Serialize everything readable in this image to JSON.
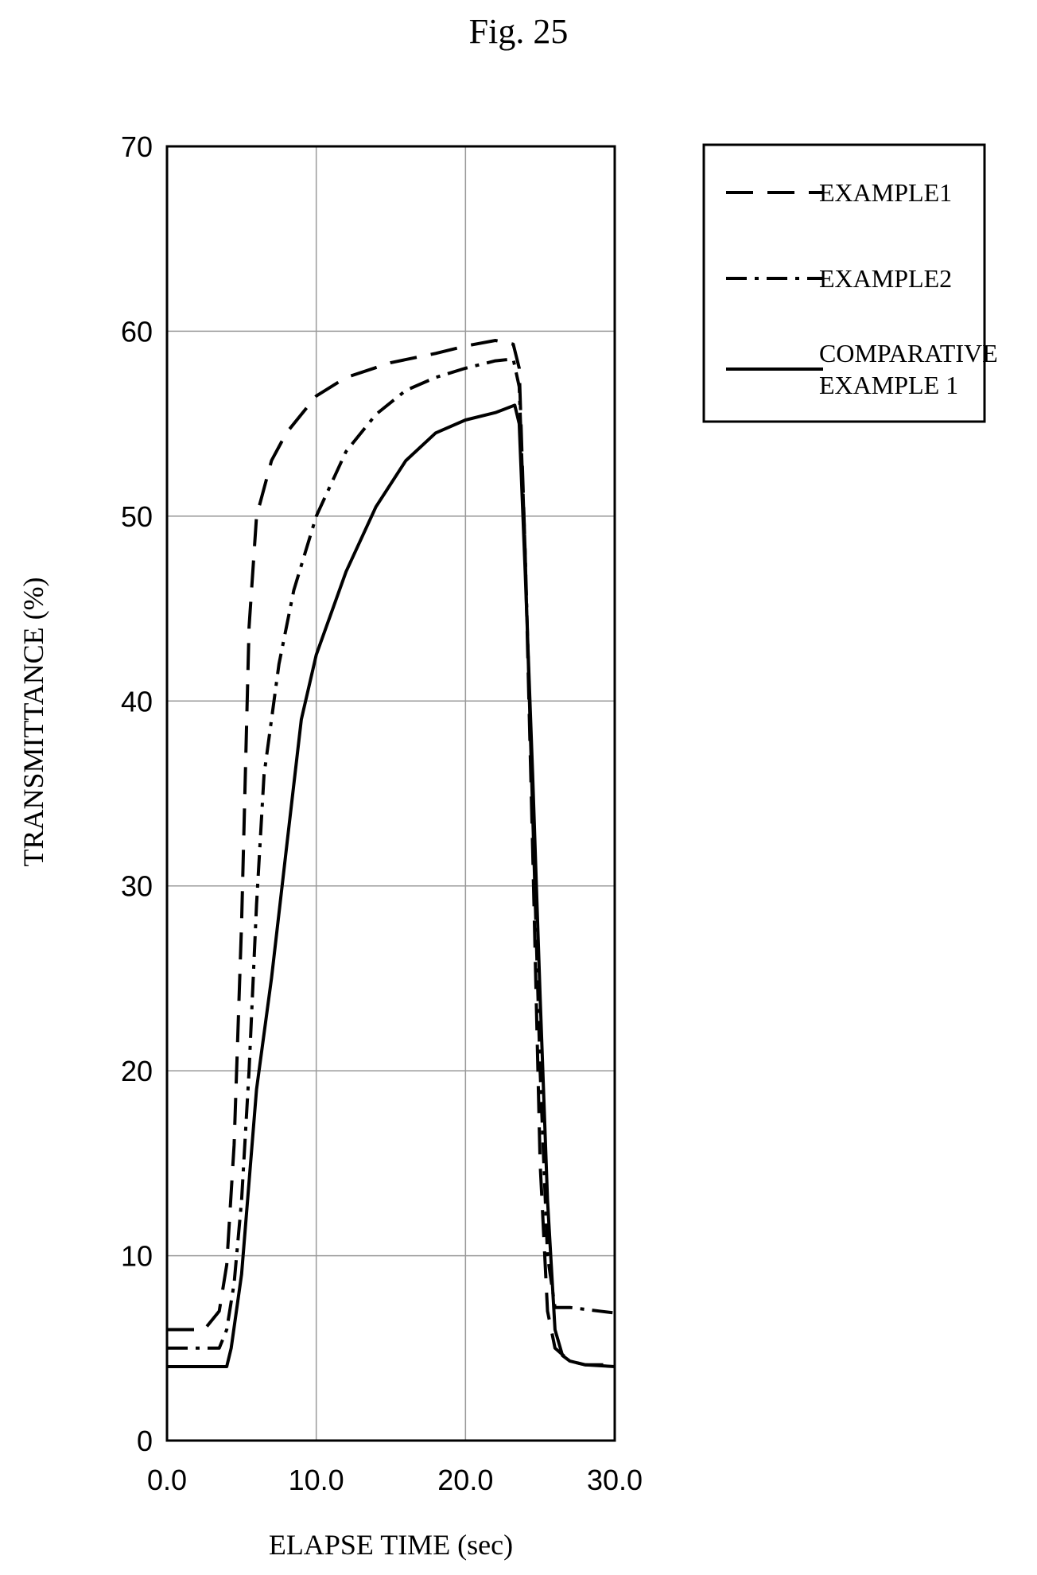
{
  "figure_label": "Fig. 25",
  "chart_data": {
    "type": "line",
    "title": "",
    "xlabel": "ELAPSE TIME (sec)",
    "ylabel": "TRANSMITTANCE (%)",
    "xlim": [
      0,
      30
    ],
    "ylim": [
      0,
      70
    ],
    "x_ticks": [
      "0.0",
      "10.0",
      "20.0",
      "30.0"
    ],
    "y_ticks": [
      "0",
      "10",
      "20",
      "30",
      "40",
      "50",
      "60",
      "70"
    ],
    "grid": true,
    "legend_position": "outside-right-top",
    "series": [
      {
        "name": "EXAMPLE1",
        "style": "dashed",
        "color": "#000000",
        "points": [
          [
            0,
            6
          ],
          [
            2.5,
            6
          ],
          [
            3.5,
            7
          ],
          [
            4,
            9.5
          ],
          [
            4.5,
            16
          ],
          [
            5,
            28
          ],
          [
            5.5,
            44
          ],
          [
            6,
            50
          ],
          [
            7,
            53
          ],
          [
            8,
            54.5
          ],
          [
            10,
            56.5
          ],
          [
            12,
            57.5
          ],
          [
            15,
            58.3
          ],
          [
            18,
            58.8
          ],
          [
            20,
            59.2
          ],
          [
            22,
            59.5
          ],
          [
            23.2,
            59.3
          ],
          [
            23.6,
            58
          ],
          [
            24,
            48
          ],
          [
            24.5,
            32
          ],
          [
            25,
            15
          ],
          [
            25.5,
            7
          ],
          [
            26,
            5
          ],
          [
            27,
            4.3
          ],
          [
            28,
            4.1
          ],
          [
            30,
            4.1
          ]
        ]
      },
      {
        "name": "EXAMPLE2",
        "style": "dashdot",
        "color": "#000000",
        "points": [
          [
            0,
            5
          ],
          [
            3.5,
            5
          ],
          [
            4,
            6
          ],
          [
            4.5,
            8.5
          ],
          [
            5,
            13
          ],
          [
            5.5,
            20
          ],
          [
            6,
            29
          ],
          [
            6.5,
            36
          ],
          [
            7.5,
            42
          ],
          [
            8.5,
            46
          ],
          [
            10,
            50
          ],
          [
            12,
            53.5
          ],
          [
            14,
            55.5
          ],
          [
            16,
            56.8
          ],
          [
            18,
            57.5
          ],
          [
            20,
            58
          ],
          [
            22,
            58.4
          ],
          [
            23.2,
            58.5
          ],
          [
            23.6,
            57
          ],
          [
            24,
            48
          ],
          [
            24.5,
            34
          ],
          [
            25,
            20
          ],
          [
            25.5,
            10
          ],
          [
            26,
            7.2
          ],
          [
            27,
            7.2
          ],
          [
            28,
            7.1
          ],
          [
            29,
            7
          ],
          [
            30,
            6.9
          ]
        ]
      },
      {
        "name": "COMPARATIVE EXAMPLE 1",
        "style": "solid",
        "color": "#000000",
        "points": [
          [
            0,
            4
          ],
          [
            4,
            4
          ],
          [
            4.3,
            5
          ],
          [
            5,
            9
          ],
          [
            5.5,
            14
          ],
          [
            6,
            19
          ],
          [
            7,
            25
          ],
          [
            8,
            32
          ],
          [
            9,
            39
          ],
          [
            10,
            42.5
          ],
          [
            12,
            47
          ],
          [
            14,
            50.5
          ],
          [
            16,
            53
          ],
          [
            18,
            54.5
          ],
          [
            20,
            55.2
          ],
          [
            22,
            55.6
          ],
          [
            23.3,
            56
          ],
          [
            23.6,
            55
          ],
          [
            24,
            47
          ],
          [
            24.5,
            36
          ],
          [
            25,
            24
          ],
          [
            25.5,
            13
          ],
          [
            26,
            6
          ],
          [
            26.5,
            4.6
          ],
          [
            27,
            4.3
          ],
          [
            28,
            4.1
          ],
          [
            30,
            4
          ]
        ]
      }
    ]
  }
}
